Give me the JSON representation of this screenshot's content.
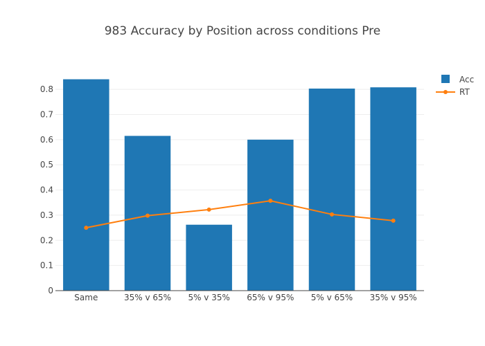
{
  "chart_data": {
    "type": "bar",
    "title": "983 Accuracy by Position across conditions Pre",
    "categories": [
      "Same",
      "35% v 65%",
      "5% v 35%",
      "65% v 95%",
      "5% v 65%",
      "35% v 95%"
    ],
    "series": [
      {
        "name": "Acc",
        "type": "bar",
        "color": "#1f77b4",
        "values": [
          0.84,
          0.615,
          0.262,
          0.6,
          0.803,
          0.808
        ]
      },
      {
        "name": "RT",
        "type": "line",
        "color": "#ff7f0e",
        "values": [
          0.25,
          0.298,
          0.322,
          0.357,
          0.303,
          0.278
        ]
      }
    ],
    "ylim": [
      0,
      0.88
    ],
    "yticks": [
      "0",
      "0.1",
      "0.2",
      "0.3",
      "0.4",
      "0.5",
      "0.6",
      "0.7",
      "0.8"
    ],
    "grid": true,
    "legend_position": "top-right"
  }
}
